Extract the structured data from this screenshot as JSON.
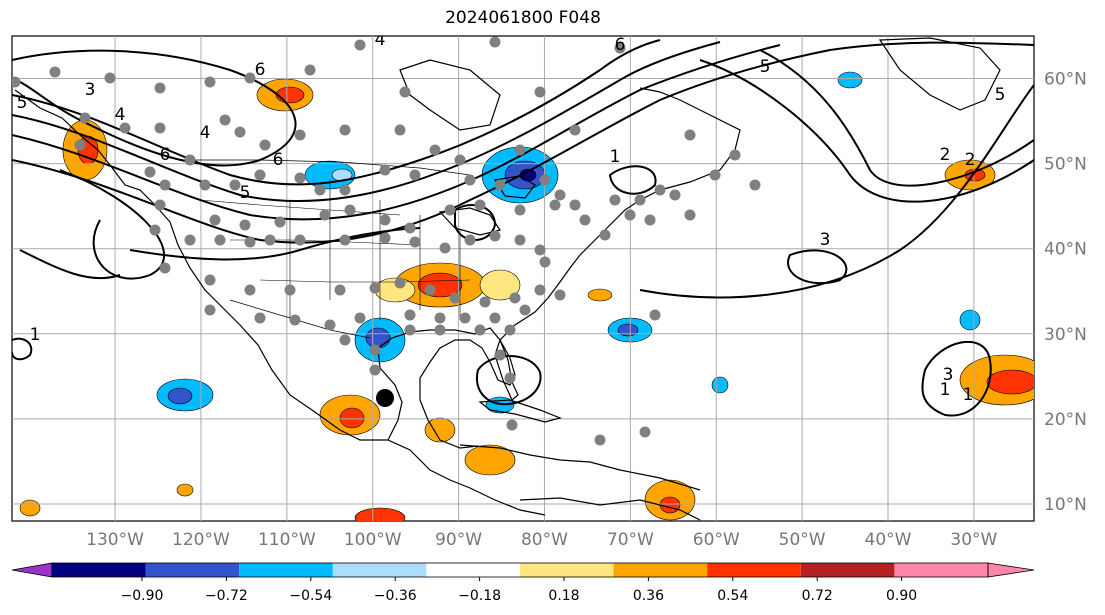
{
  "title": "2024061800 F048",
  "map": {
    "projection": "plate-carree",
    "lon_range": [
      -142,
      -23
    ],
    "lat_range": [
      8,
      65
    ],
    "gridlines": true
  },
  "lon_labels": [
    "130°W",
    "120°W",
    "110°W",
    "100°W",
    "90°W",
    "80°W",
    "70°W",
    "60°W",
    "50°W",
    "40°W",
    "30°W"
  ],
  "lat_labels": [
    "60°N",
    "50°N",
    "40°N",
    "30°N",
    "20°N",
    "10°N"
  ],
  "colorbar": {
    "ticks": [
      "−0.90",
      "−0.72",
      "−0.54",
      "−0.36",
      "−0.18",
      "0.18",
      "0.36",
      "0.54",
      "0.72",
      "0.90"
    ],
    "colors": [
      "#9933cc",
      "#000080",
      "#3355cc",
      "#00bbff",
      "#aaddff",
      "#ffffff",
      "#ffe680",
      "#ffa500",
      "#ff3300",
      "#b22222",
      "#ff88aa"
    ]
  },
  "contour_labels": [
    "5",
    "3",
    "4",
    "6",
    "4",
    "6",
    "5",
    "6",
    "5",
    "3",
    "1",
    "1",
    "1",
    "4",
    "6",
    "5",
    "2",
    "3",
    "2",
    "1"
  ],
  "stations_count": "~100 grey dots",
  "colors": {
    "coast": "#000000",
    "grid": "#aaaaaa",
    "contour": "#000000",
    "station": "#808080"
  }
}
